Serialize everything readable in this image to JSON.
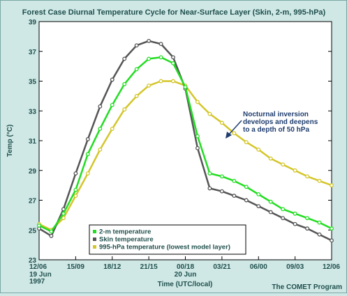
{
  "chart_data": {
    "type": "line",
    "title": "Forest Case Diurnal Temperature Cycle for Near-Surface Layer (Skin, 2-m, 995-hPa)",
    "xlabel": "Time (UTC/local)",
    "ylabel": "Temp (°C)",
    "ylim": [
      23,
      39
    ],
    "y_ticks": [
      23,
      25,
      27,
      29,
      31,
      33,
      35,
      37,
      39
    ],
    "xlim": [
      0,
      24
    ],
    "x_tick_positions": [
      0,
      3,
      6,
      9,
      12,
      15,
      18,
      21,
      24
    ],
    "x_tick_labels": [
      "12/06",
      "15/09",
      "18/12",
      "21/15",
      "00/18",
      "03/21",
      "06/00",
      "09/03",
      "12/06"
    ],
    "x_start_date": [
      "19 Jun",
      "1997"
    ],
    "x_mid_date": "20 Jun",
    "grid": false,
    "legend_position": "bottom-left",
    "x": [
      0,
      1,
      2,
      3,
      4,
      5,
      6,
      7,
      8,
      9,
      10,
      11,
      12,
      13,
      14,
      15,
      16,
      17,
      18,
      19,
      20,
      21,
      22,
      23,
      24
    ],
    "series": [
      {
        "name": "2-m temperature",
        "color": "#22dd22",
        "values": [
          25.3,
          24.9,
          26.1,
          27.7,
          30.1,
          31.8,
          33.4,
          34.8,
          35.8,
          36.5,
          36.6,
          36.2,
          34.6,
          31.3,
          28.8,
          28.6,
          28.3,
          27.9,
          27.4,
          26.9,
          26.4,
          26.1,
          25.8,
          25.5,
          25.1
        ]
      },
      {
        "name": "Skin temperature",
        "color": "#555555",
        "values": [
          25.1,
          24.6,
          26.4,
          28.8,
          31.1,
          33.3,
          35.1,
          36.5,
          37.4,
          37.7,
          37.5,
          36.6,
          34.5,
          30.5,
          27.8,
          27.6,
          27.3,
          27.0,
          26.6,
          26.2,
          25.8,
          25.4,
          25.1,
          24.7,
          24.3
        ]
      },
      {
        "name": "995-hPa temperature (lowest model layer)",
        "color": "#d4c62a",
        "values": [
          25.4,
          25.0,
          25.8,
          27.3,
          28.8,
          30.4,
          31.8,
          33.1,
          34.0,
          34.7,
          35.0,
          35.0,
          34.7,
          33.6,
          32.8,
          32.2,
          31.5,
          30.9,
          30.4,
          29.8,
          29.4,
          29.0,
          28.6,
          28.3,
          28.0
        ]
      }
    ],
    "annotation": {
      "lines": [
        "Nocturnal inversion",
        "develops and deepens",
        "to a depth of 50 hPa"
      ]
    }
  },
  "credit": "The COMET Program"
}
